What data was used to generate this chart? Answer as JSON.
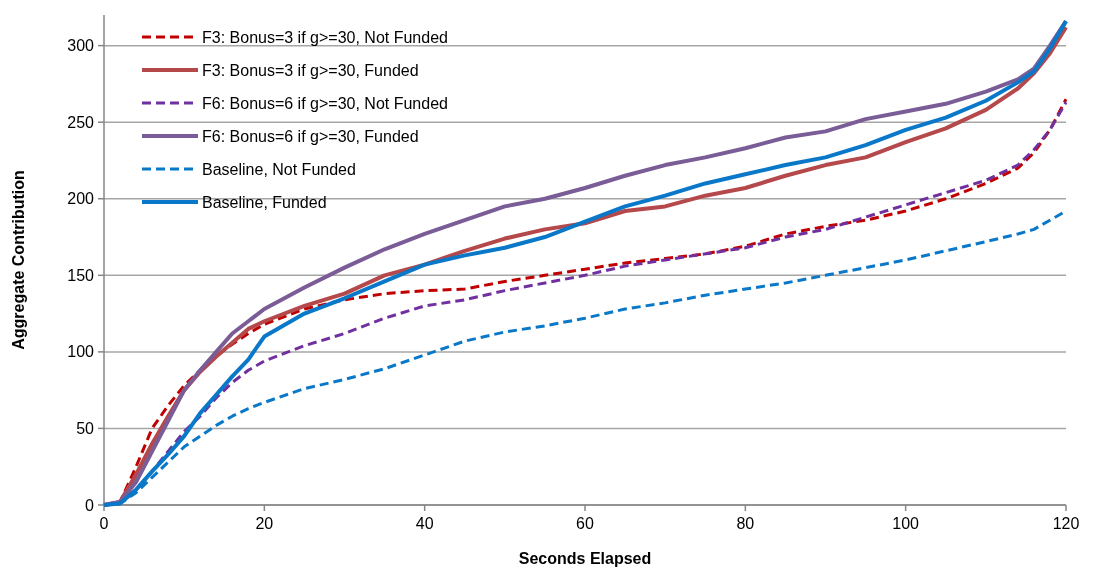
{
  "chart_data": {
    "type": "line",
    "xlabel": "Seconds Elapsed",
    "ylabel": "Aggregate Contribution",
    "x": [
      0,
      2,
      4,
      6,
      8,
      10,
      12,
      14,
      16,
      18,
      20,
      25,
      30,
      35,
      40,
      45,
      50,
      55,
      60,
      65,
      70,
      75,
      80,
      85,
      90,
      95,
      100,
      105,
      110,
      114,
      116,
      118,
      120
    ],
    "xlim": [
      0,
      120
    ],
    "xticks": [
      0,
      20,
      40,
      60,
      80,
      100,
      120
    ],
    "ylim": [
      0,
      320
    ],
    "yticks": [
      0,
      50,
      100,
      150,
      200,
      250,
      300
    ],
    "grid": "y",
    "legend": "top left",
    "marker": "none",
    "series": [
      {
        "name": "F3: Bonus=3 if g>=30, Not Funded",
        "color": "#c00000",
        "line_style": "dashed",
        "values": [
          0,
          2,
          25,
          50,
          65,
          78,
          88,
          97,
          105,
          112,
          118,
          128,
          134,
          138,
          140,
          141,
          146,
          150,
          154,
          158,
          161,
          164,
          169,
          177,
          182,
          186,
          192,
          200,
          210,
          220,
          230,
          245,
          265
        ]
      },
      {
        "name": "F3: Bonus=3 if g>=30, Funded",
        "color": "#b4484a",
        "line_style": "solid",
        "values": [
          0,
          2,
          20,
          40,
          58,
          75,
          87,
          97,
          106,
          115,
          120,
          130,
          138,
          150,
          157,
          166,
          174,
          180,
          184,
          192,
          195,
          202,
          207,
          215,
          222,
          227,
          237,
          246,
          258,
          272,
          282,
          295,
          312
        ]
      },
      {
        "name": "F6: Bonus=6 if g>=30, Not Funded",
        "color": "#7030a0",
        "line_style": "dashed",
        "values": [
          0,
          2,
          10,
          22,
          35,
          48,
          58,
          70,
          80,
          88,
          94,
          104,
          112,
          122,
          130,
          134,
          140,
          145,
          150,
          156,
          160,
          164,
          168,
          175,
          180,
          188,
          196,
          204,
          212,
          222,
          232,
          245,
          263
        ]
      },
      {
        "name": "F6: Bonus=6 if g>=30, Funded",
        "color": "#7a5c96",
        "line_style": "solid",
        "values": [
          0,
          2,
          15,
          35,
          55,
          75,
          88,
          100,
          112,
          120,
          128,
          142,
          155,
          167,
          177,
          186,
          195,
          200,
          207,
          215,
          222,
          227,
          233,
          240,
          244,
          252,
          257,
          262,
          270,
          278,
          285,
          300,
          316
        ]
      },
      {
        "name": "Baseline, Not Funded",
        "color": "#0a78c8",
        "line_style": "dashed",
        "values": [
          0,
          1,
          8,
          18,
          28,
          38,
          45,
          52,
          58,
          63,
          67,
          76,
          82,
          89,
          98,
          107,
          113,
          117,
          122,
          128,
          132,
          137,
          141,
          145,
          150,
          155,
          160,
          166,
          172,
          177,
          180,
          186,
          192
        ]
      },
      {
        "name": "Baseline, Funded",
        "color": "#0a78c8",
        "line_style": "solid",
        "values": [
          0,
          1,
          10,
          22,
          33,
          45,
          60,
          72,
          84,
          95,
          110,
          125,
          135,
          146,
          157,
          163,
          168,
          175,
          185,
          195,
          202,
          210,
          216,
          222,
          227,
          235,
          245,
          253,
          264,
          276,
          283,
          298,
          316
        ]
      }
    ]
  }
}
